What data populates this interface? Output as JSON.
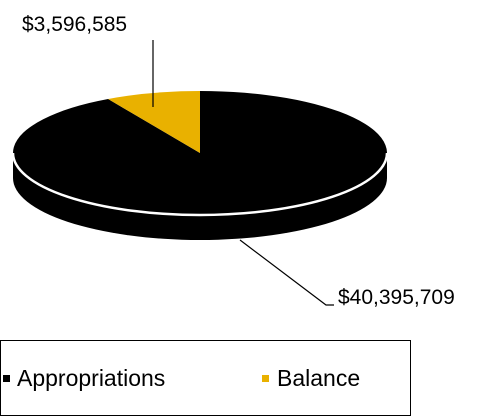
{
  "chart_data": {
    "type": "pie",
    "style": "3d",
    "slices": [
      {
        "name": "Appropriations",
        "value": 40395709,
        "label": "$40,395,709",
        "color": "#000000"
      },
      {
        "name": "Balance",
        "value": 3596585,
        "label": "$3,596,585",
        "color": "#E9B100"
      }
    ],
    "legend": {
      "placement": "bottom",
      "entries": [
        "Appropriations",
        "Balance"
      ]
    }
  }
}
